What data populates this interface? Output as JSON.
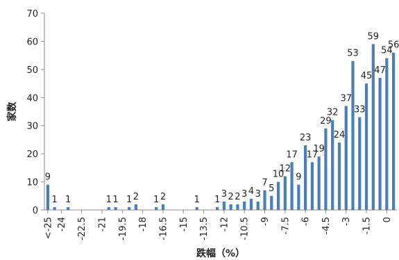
{
  "chart_data": {
    "type": "bar",
    "xlabel": "跌幅（%）",
    "ylabel": "家数",
    "ylim": [
      0,
      70
    ],
    "y_ticks": [
      0,
      10,
      20,
      30,
      40,
      50,
      60,
      70
    ],
    "x_tick_labels": [
      "<-25",
      "-24",
      "-22.5",
      "-21",
      "-19.5",
      "-18",
      "-16.5",
      "-15",
      "-13.5",
      "-12",
      "-10.5",
      "-9",
      "-7.5",
      "-6",
      "-4.5",
      "-3",
      "-1.5",
      "0"
    ],
    "bar_color": "#4a7ebb",
    "grid": false,
    "points": [
      {
        "x": -25.0,
        "value": 9
      },
      {
        "x": -24.5,
        "value": 1
      },
      {
        "x": -23.5,
        "value": 1
      },
      {
        "x": -20.5,
        "value": 1
      },
      {
        "x": -20.0,
        "value": 1
      },
      {
        "x": -19.0,
        "value": 1
      },
      {
        "x": -18.5,
        "value": 2
      },
      {
        "x": -17.0,
        "value": 1
      },
      {
        "x": -16.5,
        "value": 2
      },
      {
        "x": -14.0,
        "value": 1
      },
      {
        "x": -12.5,
        "value": 1
      },
      {
        "x": -12.0,
        "value": 3
      },
      {
        "x": -11.5,
        "value": 2
      },
      {
        "x": -11.0,
        "value": 2
      },
      {
        "x": -10.5,
        "value": 3
      },
      {
        "x": -10.0,
        "value": 4
      },
      {
        "x": -9.5,
        "value": 3
      },
      {
        "x": -9.0,
        "value": 7
      },
      {
        "x": -8.5,
        "value": 5
      },
      {
        "x": -8.0,
        "value": 10
      },
      {
        "x": -7.5,
        "value": 12
      },
      {
        "x": -7.0,
        "value": 17
      },
      {
        "x": -6.5,
        "value": 9
      },
      {
        "x": -6.0,
        "value": 23
      },
      {
        "x": -5.5,
        "value": 17
      },
      {
        "x": -5.0,
        "value": 19
      },
      {
        "x": -4.5,
        "value": 29
      },
      {
        "x": -4.0,
        "value": 32
      },
      {
        "x": -3.5,
        "value": 24
      },
      {
        "x": -3.0,
        "value": 37
      },
      {
        "x": -2.5,
        "value": 53
      },
      {
        "x": -2.0,
        "value": 33
      },
      {
        "x": -1.5,
        "value": 45
      },
      {
        "x": -1.0,
        "value": 59
      },
      {
        "x": -0.5,
        "value": 47
      },
      {
        "x": 0.0,
        "value": 54
      },
      {
        "x": 0.5,
        "value": 56
      }
    ]
  }
}
